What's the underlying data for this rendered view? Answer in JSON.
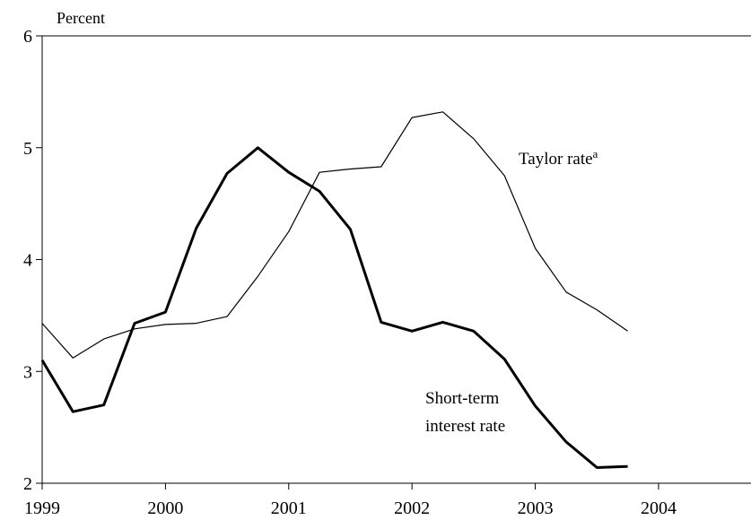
{
  "chart_data": {
    "type": "line",
    "ylabel": "Percent",
    "xlim": [
      1999,
      2004.75
    ],
    "ylim": [
      2,
      6
    ],
    "x_ticks": [
      1999,
      2000,
      2001,
      2002,
      2003,
      2004
    ],
    "y_ticks": [
      2,
      3,
      4,
      5,
      6
    ],
    "grid": false,
    "series": [
      {
        "name": "Taylor rate",
        "name_superscript": "a",
        "color": "#000000",
        "x": [
          1999.0,
          1999.25,
          1999.5,
          1999.75,
          2000.0,
          2000.25,
          2000.5,
          2000.75,
          2001.0,
          2001.25,
          2001.5,
          2001.75,
          2002.0,
          2002.25,
          2002.5,
          2002.75,
          2003.0,
          2003.25,
          2003.5,
          2003.75
        ],
        "values": [
          3.43,
          3.12,
          3.29,
          3.38,
          3.42,
          3.43,
          3.49,
          3.85,
          4.25,
          4.78,
          4.81,
          4.83,
          5.27,
          5.32,
          5.08,
          4.75,
          4.1,
          3.71,
          3.55,
          3.36
        ]
      },
      {
        "name": "Short-term interest rate",
        "name_lines": [
          "Short-term",
          "interest rate"
        ],
        "color": "#000000",
        "x": [
          1999.0,
          1999.25,
          1999.5,
          1999.75,
          2000.0,
          2000.25,
          2000.5,
          2000.75,
          2001.0,
          2001.25,
          2001.5,
          2001.75,
          2002.0,
          2002.25,
          2002.5,
          2002.75,
          2003.0,
          2003.25,
          2003.5,
          2003.75
        ],
        "values": [
          3.1,
          2.64,
          2.7,
          3.43,
          3.53,
          4.28,
          4.77,
          5.0,
          4.78,
          4.61,
          4.27,
          3.44,
          3.36,
          3.44,
          3.36,
          3.11,
          2.69,
          2.37,
          2.14,
          2.15
        ]
      }
    ]
  }
}
